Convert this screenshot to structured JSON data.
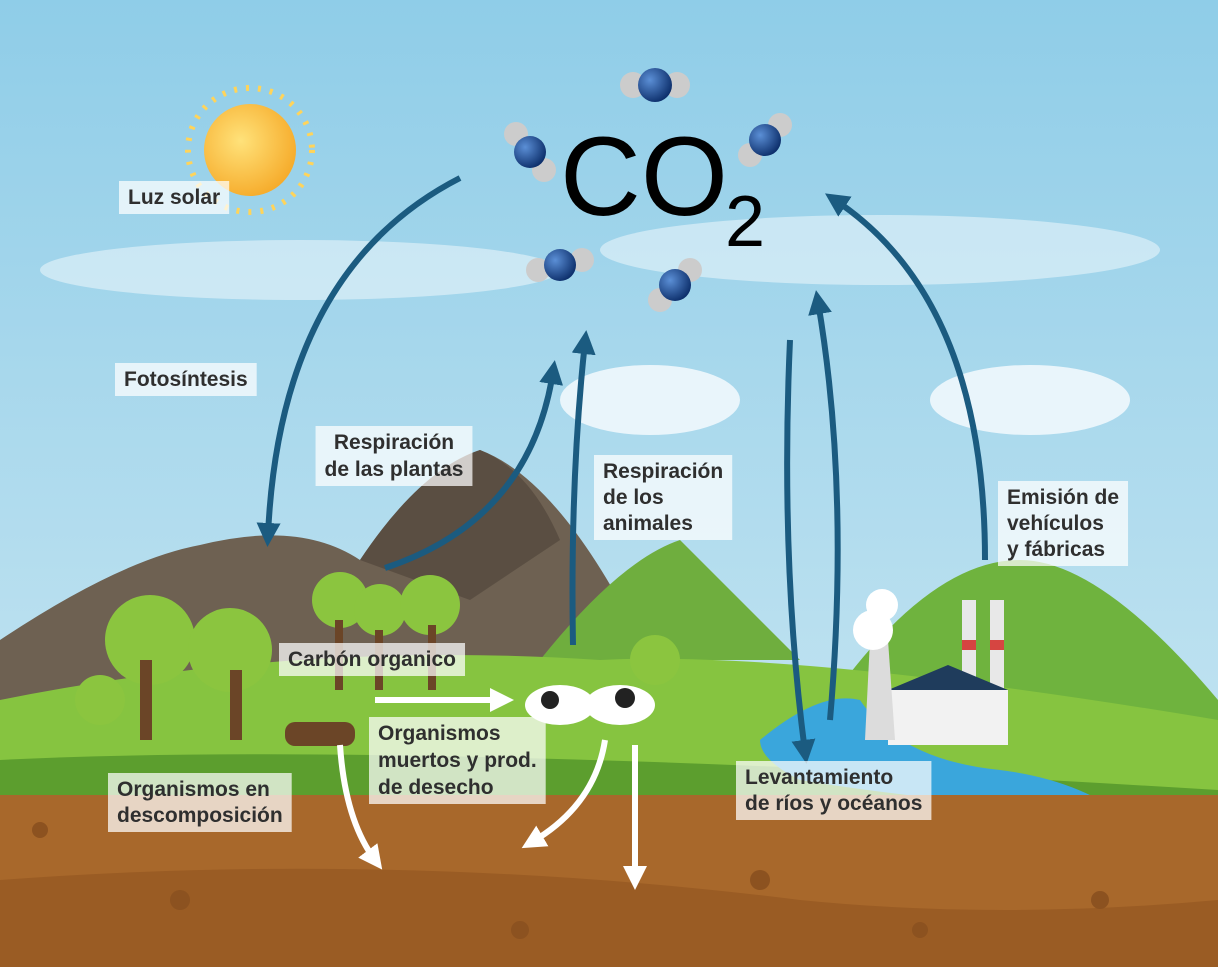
{
  "co2": {
    "main": "CO",
    "subscript": "2"
  },
  "labels": [
    {
      "lines": [
        "Luz solar"
      ]
    },
    {
      "lines": [
        "Fotosíntesis"
      ]
    },
    {
      "lines": [
        "Respiración",
        "de las plantas"
      ]
    },
    {
      "lines": [
        "Respiración",
        "de los",
        "animales"
      ]
    },
    {
      "lines": [
        "Emisión de",
        "vehículos",
        "y fábricas"
      ]
    },
    {
      "lines": [
        "Carbón organico"
      ]
    },
    {
      "lines": [
        "Organismos",
        "muertos y prod.",
        "de desecho"
      ]
    },
    {
      "lines": [
        "Organismos en",
        "descomposición"
      ]
    },
    {
      "lines": [
        "Levantamiento",
        "de ríos y océanos"
      ]
    }
  ]
}
